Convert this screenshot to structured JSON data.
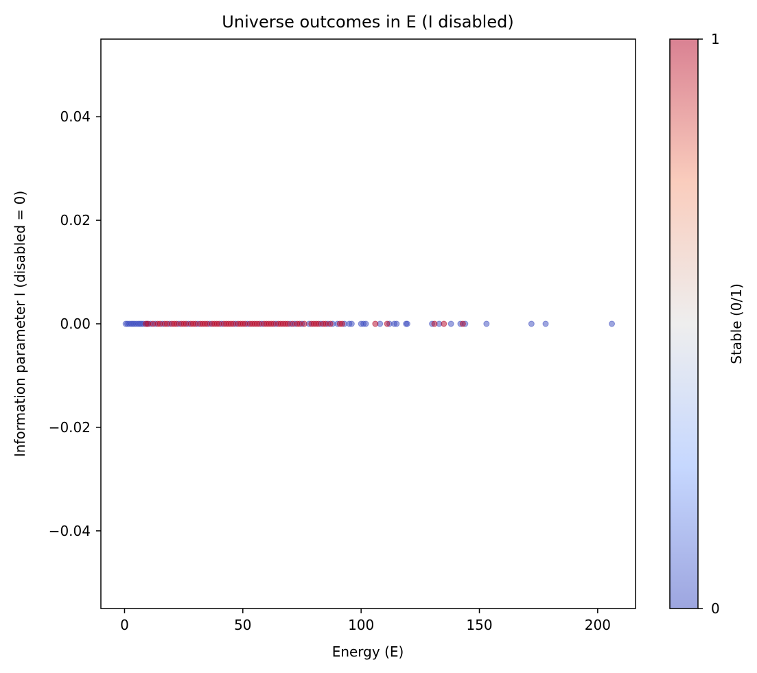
{
  "chart_data": {
    "type": "scatter",
    "title": "Universe outcomes in E (I disabled)",
    "xlabel": "Energy (E)",
    "ylabel": "Information parameter I (disabled = 0)",
    "xlim": [
      -10,
      216
    ],
    "ylim": [
      -0.055,
      0.055
    ],
    "xticks": [
      0,
      50,
      100,
      150,
      200
    ],
    "yticks": [
      -0.04,
      -0.02,
      0.0,
      0.02,
      0.04
    ],
    "xtick_labels": [
      "0",
      "50",
      "100",
      "150",
      "200"
    ],
    "ytick_labels": [
      "−0.04",
      "−0.02",
      "0.00",
      "0.02",
      "0.04"
    ],
    "grid": false,
    "colormap": "coolwarm",
    "colors": {
      "low": "#3b4cc0",
      "mid": "#dddddd",
      "high": "#b40426"
    },
    "marker_alpha": 0.5,
    "colorbar": {
      "label": "Stable (0/1)",
      "range": [
        0,
        1
      ],
      "ticks": [
        0,
        1
      ],
      "tick_labels": [
        "0",
        "1"
      ]
    },
    "points_unstable": {
      "name": "Stable = 0",
      "x": [
        0.5,
        1.2,
        2.0,
        2.8,
        3.5,
        4.2,
        5.0,
        5.8,
        6.5,
        7.2,
        8.0,
        9.5,
        11.0,
        13.0,
        16.0,
        19.0,
        23.0,
        27.0,
        31.0,
        36.0,
        41.0,
        47.0,
        52.0,
        58.0,
        64.0,
        70.0,
        72.0,
        75.0,
        78.0,
        83.0,
        86.0,
        88.0,
        90.0,
        93.0,
        95.0,
        96.0,
        100.0,
        101.0,
        102.0,
        108.0,
        112.0,
        114.0,
        115.0,
        119.0,
        119.5,
        130.0,
        133.0,
        138.0,
        142.0,
        144.0,
        153.0,
        172.0,
        178.0,
        206.0
      ],
      "y": [
        0,
        0,
        0,
        0,
        0,
        0,
        0,
        0,
        0,
        0,
        0,
        0,
        0,
        0,
        0,
        0,
        0,
        0,
        0,
        0,
        0,
        0,
        0,
        0,
        0,
        0,
        0,
        0,
        0,
        0,
        0,
        0,
        0,
        0,
        0,
        0,
        0,
        0,
        0,
        0,
        0,
        0,
        0,
        0,
        0,
        0,
        0,
        0,
        0,
        0,
        0,
        0,
        0,
        0
      ]
    },
    "points_stable": {
      "name": "Stable = 1",
      "x": [
        9,
        10,
        12,
        14,
        15,
        17,
        18,
        20,
        21,
        22,
        24,
        25,
        26,
        28,
        29,
        30,
        32,
        33,
        34,
        35,
        37,
        38,
        39,
        40,
        42,
        43,
        44,
        45,
        46,
        48,
        49,
        50,
        51,
        53,
        54,
        55,
        56,
        57,
        59,
        60,
        61,
        62,
        63,
        65,
        66,
        67,
        68,
        69,
        71,
        73,
        74,
        76,
        79,
        80,
        81,
        82,
        84,
        85,
        87,
        91,
        92,
        106,
        111,
        131,
        135,
        143
      ],
      "y": [
        0,
        0,
        0,
        0,
        0,
        0,
        0,
        0,
        0,
        0,
        0,
        0,
        0,
        0,
        0,
        0,
        0,
        0,
        0,
        0,
        0,
        0,
        0,
        0,
        0,
        0,
        0,
        0,
        0,
        0,
        0,
        0,
        0,
        0,
        0,
        0,
        0,
        0,
        0,
        0,
        0,
        0,
        0,
        0,
        0,
        0,
        0,
        0,
        0,
        0,
        0,
        0,
        0,
        0,
        0,
        0,
        0,
        0,
        0,
        0,
        0,
        0,
        0,
        0,
        0,
        0
      ]
    }
  }
}
